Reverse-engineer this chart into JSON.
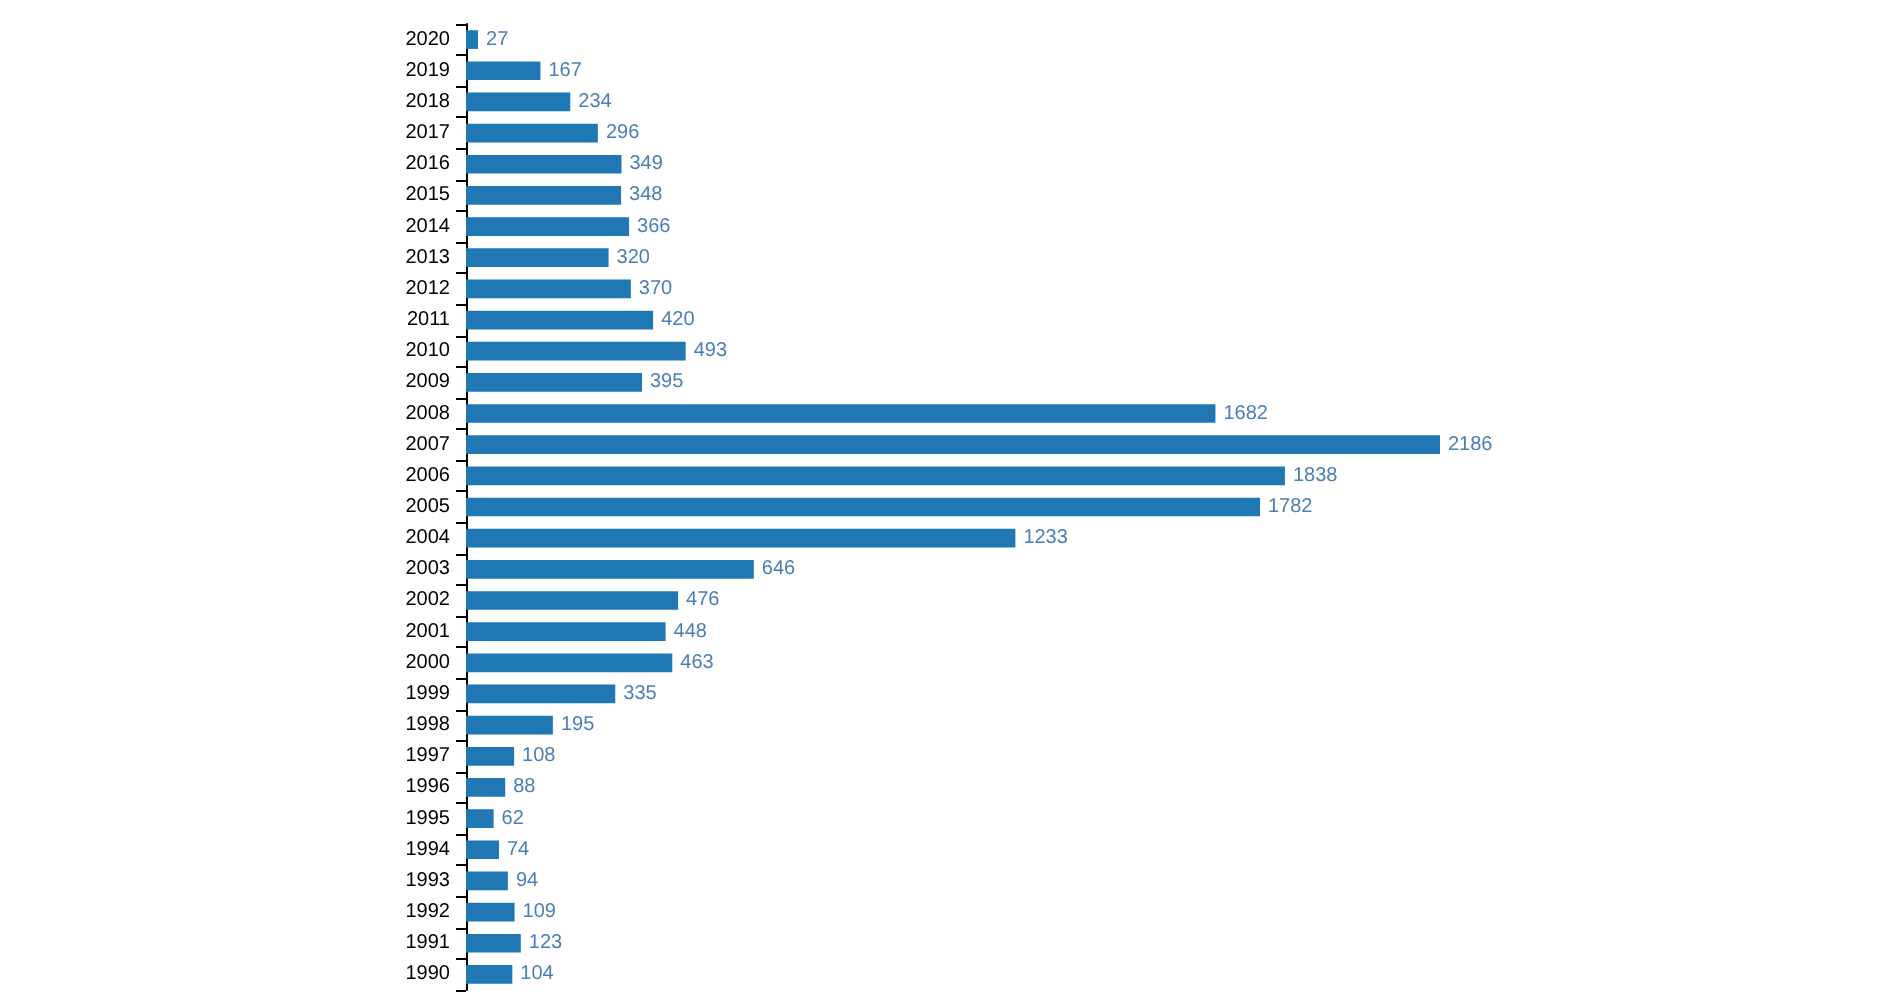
{
  "chart_data": {
    "type": "bar",
    "orientation": "horizontal",
    "data_labels": true,
    "color": "#1f77b4",
    "categories": [
      "2020",
      "2019",
      "2018",
      "2017",
      "2016",
      "2015",
      "2014",
      "2013",
      "2012",
      "2011",
      "2010",
      "2009",
      "2008",
      "2007",
      "2006",
      "2005",
      "2004",
      "2003",
      "2002",
      "2001",
      "2000",
      "1999",
      "1998",
      "1997",
      "1996",
      "1995",
      "1994",
      "1993",
      "1992",
      "1991",
      "1990"
    ],
    "values": [
      27,
      167,
      234,
      296,
      349,
      348,
      366,
      320,
      370,
      420,
      493,
      395,
      1682,
      2186,
      1838,
      1782,
      1233,
      646,
      476,
      448,
      463,
      335,
      195,
      108,
      88,
      62,
      74,
      94,
      109,
      123,
      104
    ]
  }
}
